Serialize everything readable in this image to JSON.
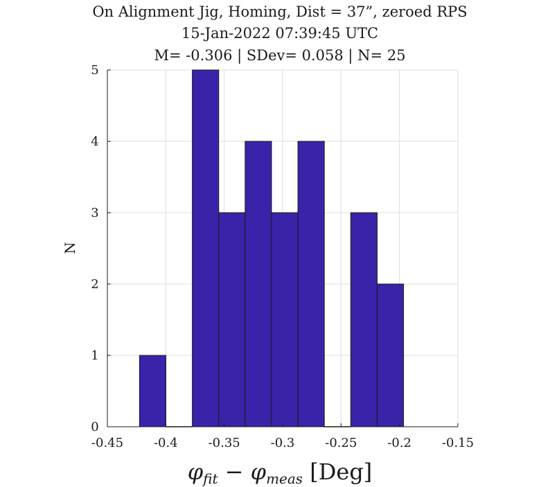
{
  "chart_data": {
    "type": "bar",
    "title": [
      "On Alignment Jig, Homing, Dist = 37”, zeroed RPS",
      "15-Jan-2022 07:39:45 UTC",
      "M= -0.306 | SDev= 0.058 | N= 25"
    ],
    "xlabel": {
      "phi1": "φ",
      "sub1": "fit",
      "minus": " − ",
      "phi2": "φ",
      "sub2": "meas",
      "unit": " [Deg]"
    },
    "ylabel": "N",
    "xlim": [
      -0.45,
      -0.15
    ],
    "ylim": [
      0,
      5
    ],
    "xticks": [
      -0.45,
      -0.4,
      -0.35,
      -0.3,
      -0.25,
      -0.2,
      -0.15
    ],
    "xtick_labels": [
      "-0.45",
      "-0.4",
      "-0.35",
      "-0.3",
      "-0.25",
      "-0.2",
      "-0.15"
    ],
    "yticks": [
      0,
      1,
      2,
      3,
      4,
      5
    ],
    "ytick_labels": [
      "0",
      "1",
      "2",
      "3",
      "4",
      "5"
    ],
    "grid": true,
    "bin_edges": [
      -0.4225,
      -0.3999,
      -0.3773,
      -0.3547,
      -0.3321,
      -0.3095,
      -0.2869,
      -0.2643,
      -0.2417,
      -0.2191,
      -0.1965
    ],
    "counts": [
      1,
      0,
      5,
      3,
      4,
      3,
      4,
      0,
      3,
      2
    ],
    "colors": {
      "bar_fill": "#3a23a8",
      "bar_edge": "#1a1a1a",
      "grid": "#dcdcdc",
      "axis": "#1a1a1a"
    }
  }
}
